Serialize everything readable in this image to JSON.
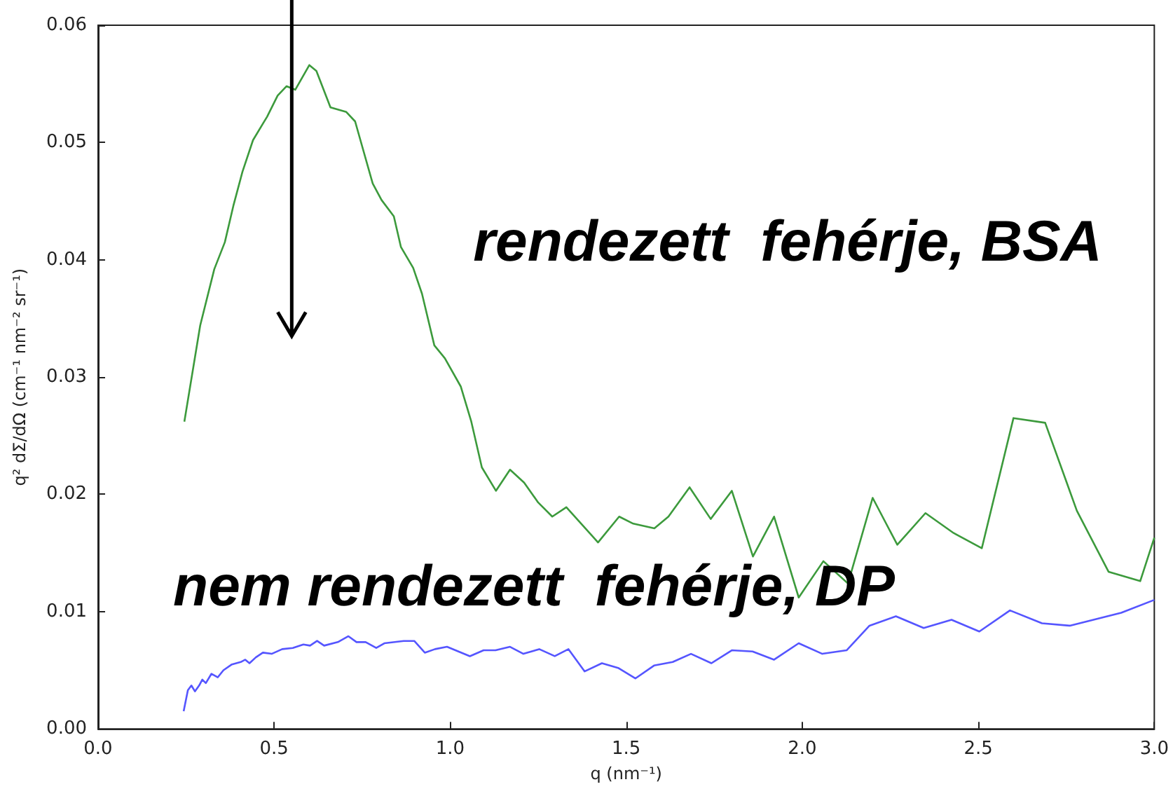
{
  "chart_data": {
    "type": "line",
    "xlabel": "q (nm⁻¹)",
    "ylabel": "q² dΣ/dΩ (cm⁻¹ nm⁻² sr⁻¹)",
    "xlim": [
      0,
      3
    ],
    "xticks": [
      {
        "value": 0,
        "label": "0.0"
      },
      {
        "value": 0.5,
        "label": "0.5"
      },
      {
        "value": 1,
        "label": "1.0"
      },
      {
        "value": 1.5,
        "label": "1.5"
      },
      {
        "value": 2,
        "label": "2.0"
      },
      {
        "value": 2.5,
        "label": "2.5"
      },
      {
        "value": 3,
        "label": "3.0"
      }
    ],
    "ylim": [
      0,
      0.06
    ],
    "yticks": [
      {
        "value": 0,
        "label": "0.00"
      },
      {
        "value": 0.01,
        "label": "0.01"
      },
      {
        "value": 0.02,
        "label": "0.02"
      },
      {
        "value": 0.03,
        "label": "0.03"
      },
      {
        "value": 0.04,
        "label": "0.04"
      },
      {
        "value": 0.05,
        "label": "0.05"
      },
      {
        "value": 0.06,
        "label": "0.06"
      }
    ],
    "grid": false,
    "marker": "none",
    "line_style": "solid",
    "annotations": [
      "rendezett  fehérje, BSA",
      "nem rendezett  fehérje, DP"
    ],
    "series": [
      {
        "color": "#3c9a3c",
        "x": [
          0.245,
          0.29,
          0.33,
          0.36,
          0.385,
          0.41,
          0.44,
          0.47,
          0.48,
          0.51,
          0.535,
          0.56,
          0.6,
          0.62,
          0.66,
          0.705,
          0.73,
          0.78,
          0.805,
          0.84,
          0.86,
          0.895,
          0.92,
          0.955,
          0.985,
          1.03,
          1.06,
          1.09,
          1.13,
          1.17,
          1.21,
          1.25,
          1.29,
          1.33,
          1.42,
          1.48,
          1.52,
          1.58,
          1.62,
          1.68,
          1.74,
          1.8,
          1.86,
          1.92,
          1.99,
          2.06,
          2.13,
          2.2,
          2.27,
          2.35,
          2.43,
          2.51,
          2.6,
          2.69,
          2.78,
          2.87,
          2.96,
          3.0
        ],
        "values": [
          0.0262,
          0.0344,
          0.0392,
          0.0415,
          0.0447,
          0.0475,
          0.0502,
          0.0517,
          0.0522,
          0.054,
          0.0548,
          0.0545,
          0.0566,
          0.0561,
          0.053,
          0.0526,
          0.0518,
          0.0465,
          0.0451,
          0.0437,
          0.0411,
          0.0393,
          0.0371,
          0.0327,
          0.0316,
          0.0292,
          0.0262,
          0.0223,
          0.0203,
          0.0221,
          0.021,
          0.0193,
          0.0181,
          0.0189,
          0.0159,
          0.0181,
          0.0175,
          0.0171,
          0.0181,
          0.0206,
          0.0179,
          0.0203,
          0.0147,
          0.0181,
          0.0112,
          0.0143,
          0.0124,
          0.0197,
          0.0157,
          0.0184,
          0.0167,
          0.0154,
          0.0265,
          0.0261,
          0.0186,
          0.0134,
          0.0126,
          0.0163
        ]
      },
      {
        "color": "#5555ff",
        "x": [
          0.243,
          0.255,
          0.265,
          0.275,
          0.287,
          0.296,
          0.306,
          0.322,
          0.34,
          0.356,
          0.38,
          0.405,
          0.418,
          0.43,
          0.448,
          0.468,
          0.493,
          0.523,
          0.553,
          0.583,
          0.602,
          0.622,
          0.642,
          0.681,
          0.711,
          0.734,
          0.76,
          0.79,
          0.813,
          0.868,
          0.898,
          0.928,
          0.957,
          0.991,
          1.056,
          1.095,
          1.129,
          1.17,
          1.208,
          1.253,
          1.297,
          1.336,
          1.382,
          1.431,
          1.477,
          1.526,
          1.579,
          1.632,
          1.684,
          1.742,
          1.8,
          1.859,
          1.92,
          1.99,
          2.057,
          2.126,
          2.191,
          2.266,
          2.345,
          2.424,
          2.503,
          2.59,
          2.681,
          2.76,
          2.906,
          3.0
        ],
        "values": [
          0.0015,
          0.0033,
          0.0037,
          0.0032,
          0.0037,
          0.0042,
          0.0039,
          0.0047,
          0.0044,
          0.005,
          0.0055,
          0.0057,
          0.0059,
          0.0056,
          0.0061,
          0.0065,
          0.0064,
          0.0068,
          0.0069,
          0.0072,
          0.0071,
          0.0075,
          0.0071,
          0.0074,
          0.0079,
          0.0074,
          0.0074,
          0.0069,
          0.0073,
          0.0075,
          0.0075,
          0.0065,
          0.0068,
          0.007,
          0.0062,
          0.0067,
          0.0067,
          0.007,
          0.0064,
          0.0068,
          0.0062,
          0.0068,
          0.0049,
          0.0056,
          0.0052,
          0.0043,
          0.0054,
          0.0057,
          0.0064,
          0.0056,
          0.0067,
          0.0066,
          0.0059,
          0.0073,
          0.0064,
          0.0067,
          0.0088,
          0.0096,
          0.0086,
          0.0093,
          0.0083,
          0.0101,
          0.009,
          0.0088,
          0.0099,
          0.011
        ]
      }
    ]
  }
}
